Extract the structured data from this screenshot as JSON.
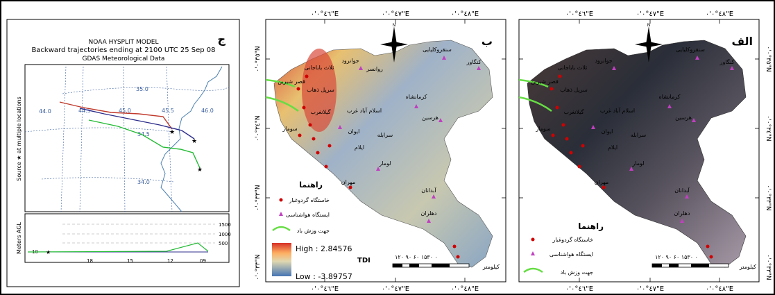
{
  "hysplit": {
    "panel_letter": "ج",
    "model_title": "NOAA HYSPLIT MODEL",
    "subtitle": "Backward trajectories ending at 2100 UTC 25 Sep 08",
    "data_source": "GDAS Meteorological Data",
    "y_side_label": "Source ★ at multiple locations",
    "lat_labels": [
      "35.0",
      "34.5",
      "34.0"
    ],
    "lon_labels": [
      "44.0",
      "44.5",
      "45.0",
      "45.5",
      "46.0"
    ],
    "agl_label": "Meters AGL",
    "height_labels": [
      "1500",
      "1000",
      "500"
    ],
    "height_start_label": "10",
    "time_labels": [
      "18",
      "15",
      "12",
      "09"
    ]
  },
  "map_b": {
    "panel_letter": "ب",
    "top_lon_labels": [
      "٤٦°٠'٠\"E",
      "٤٧°٠'٠\"E",
      "٤٨°٠'٠\"E"
    ],
    "bottom_lon_labels": [
      "٤٦°٠'٠\"E",
      "٤٧°٠'٠\"E",
      "٤٨°٠'٠\"E"
    ],
    "lat_labels": [
      "٣٥°٠'٠\"N",
      "٣٤°٠'٠\"N",
      "٣٣°٠'٠\"N",
      "٣٣°٠'٠\"N"
    ],
    "legend_title": "راهنما",
    "legend_dust": "خاستگاه گردوغبار",
    "legend_station": "ایستگاه هواشناسی",
    "legend_wind": "جهت وزش باد",
    "tdi_high": "High : 2.84576",
    "tdi_low": "Low : -3.89757",
    "tdi_label": "TDI",
    "scale_numbers": "۱۲۰   ۹۰   ۶۰   ۱۵۳۰   ۰",
    "scale_unit": "کیلومتر",
    "place_names": [
      "سنقروکلیایی",
      "کنگاور",
      "جوانرود",
      "روانسر",
      "ثلاث باباجانی",
      "سرپل ذهاب",
      "قصر شیرین",
      "کرمانشاه",
      "هرسین",
      "اسلام آباد غرب",
      "گیلانغرب",
      "ایوان",
      "سرابله",
      "سومار",
      "ایلام",
      "لومار",
      "مهران",
      "آبدانان",
      "دهلران"
    ]
  },
  "map_a": {
    "panel_letter": "الف",
    "top_lon_labels": [
      "٤٦°٠'٠\"E",
      "٤٧°٠'٠\"E",
      "٤٨°٠'٠\"E"
    ],
    "bottom_lon_labels": [
      "٤٦°٠'٠\"E",
      "٤٧°٠'٠\"E",
      "٤٨°٠'٠\"E"
    ],
    "lat_labels": [
      "٣٥°٠'٠\"N",
      "٣٤°٠'٠\"N",
      "٣٣°٠'٠\"N",
      "٣٣°٠'٠\"N"
    ],
    "legend_title": "راهنما",
    "legend_dust": "خاستگاه گردوغبار",
    "legend_station": "ایستگاه هواشناسی",
    "legend_wind": "جهت وزش باد",
    "scale_numbers": "۱۲۰   ۹۰   ۶۰   ۱۵۳۰   ۰",
    "scale_unit": "کیلومتر",
    "place_names": [
      "سنقروکلیایی",
      "کنگاور",
      "ثلاث باباجانی",
      "جوانرود",
      "سرپل ذهاب",
      "قصر شیرین",
      "کرمانشاه",
      "هرسین",
      "اسلام آباد غرب",
      "گیلانغرب",
      "ایوان",
      "سرابله",
      "سومار",
      "ایلام",
      "لومار",
      "مهران",
      "آبدانان",
      "دهلران"
    ]
  },
  "colors": {
    "trajectory_red": "#c0392b",
    "trajectory_blue": "#2c2c8c",
    "trajectory_green": "#22bb33",
    "border_line": "#4a7fb0",
    "dust_marker": "#d00000",
    "station_marker": "#c040c0",
    "wind_arrow": "#66dd44"
  }
}
